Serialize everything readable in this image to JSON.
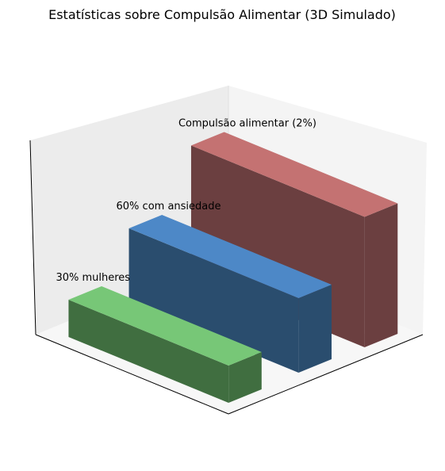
{
  "chart_data": {
    "type": "bar3d",
    "title": "Estatísticas sobre Compulsão Alimentar (3D Simulado)",
    "categories": [
      "30% mulheres",
      "60% com ansiedade",
      "Compulsão alimentar (2%)"
    ],
    "values": [
      0.2,
      0.4,
      0.7
    ],
    "zlim": [
      0,
      1
    ],
    "colors": [
      "#77c777",
      "#4d88c7",
      "#c47272"
    ],
    "side_colors": [
      "#406e40",
      "#2a4d6e",
      "#6b3f40"
    ]
  }
}
